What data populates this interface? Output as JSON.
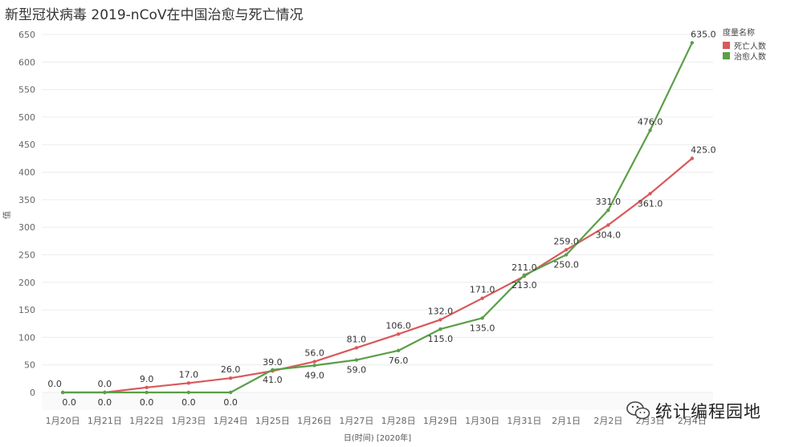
{
  "chart_data": {
    "type": "line",
    "title": "新型冠状病毒 2019-nCoV在中国治愈与死亡情况",
    "xlabel": "日(时间) [2020年]",
    "ylabel": "值",
    "ylim": [
      0,
      650
    ],
    "yticks": [
      0,
      50,
      100,
      150,
      200,
      250,
      300,
      350,
      400,
      450,
      500,
      550,
      600,
      650
    ],
    "categories": [
      "1月20日",
      "1月21日",
      "1月22日",
      "1月23日",
      "1月24日",
      "1月25日",
      "1月26日",
      "1月27日",
      "1月28日",
      "1月29日",
      "1月30日",
      "1月31日",
      "2月1日",
      "2月2日",
      "2月3日",
      "2月4日"
    ],
    "legend_title": "度量名称",
    "legend_position": "top-right",
    "grid": true,
    "series": [
      {
        "name": "死亡人数",
        "color": "#d9595b",
        "values": [
          0,
          0,
          9,
          17,
          26,
          39,
          56,
          81,
          106,
          132,
          171,
          211,
          259,
          304,
          361,
          425
        ],
        "labels": [
          "0.0",
          "0.0",
          "9.0",
          "17.0",
          "26.0",
          "39.0",
          "56.0",
          "81.0",
          "106.0",
          "132.0",
          "171.0",
          "211.0",
          "259.0",
          "304.0",
          "361.0",
          "425.0"
        ]
      },
      {
        "name": "治愈人数",
        "color": "#5a9f47",
        "values": [
          0,
          0,
          0,
          0,
          0,
          41,
          49,
          59,
          76,
          115,
          135,
          213,
          250,
          331,
          476,
          635
        ],
        "labels": [
          "0.0",
          "0.0",
          "0.0",
          "0.0",
          "0.0",
          "41.0",
          "49.0",
          "59.0",
          "76.0",
          "115.0",
          "135.0",
          "213.0",
          "250.0",
          "331.0",
          "476.0",
          "635.0"
        ]
      }
    ]
  },
  "watermark": {
    "text": "统计编程园地",
    "icon": "wechat-icon"
  }
}
